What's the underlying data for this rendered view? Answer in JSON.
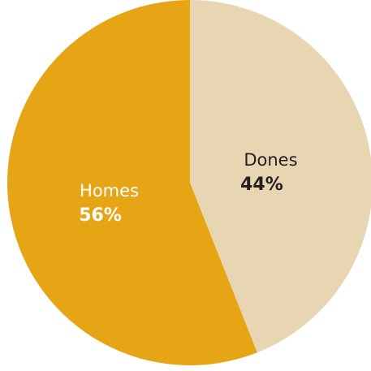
{
  "chart_data": {
    "type": "pie",
    "slices": [
      {
        "label": "Dones",
        "value": 44,
        "value_label": "44%",
        "color": "#E8D5B1",
        "text_color": "#231F20"
      },
      {
        "label": "Homes",
        "value": 56,
        "value_label": "56%",
        "color": "#E6A514",
        "text_color": "#FFFFFF"
      }
    ],
    "start_angle": "top",
    "direction": "clockwise",
    "legend": "none"
  }
}
